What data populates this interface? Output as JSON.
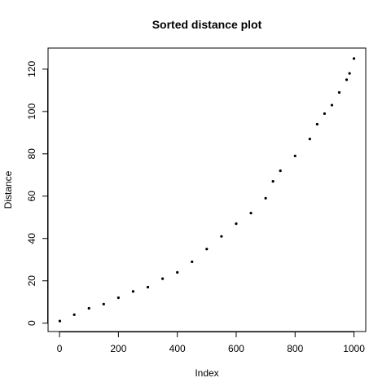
{
  "chart_data": {
    "type": "scatter",
    "title": "Sorted distance plot",
    "xlabel": "Index",
    "ylabel": "Distance",
    "xlim": [
      1,
      1000
    ],
    "ylim": [
      1,
      125
    ],
    "xticks": [
      0,
      200,
      400,
      600,
      800,
      1000
    ],
    "yticks": [
      0,
      20,
      40,
      60,
      80,
      100,
      120
    ],
    "grid": false,
    "marker_color": "#000000",
    "series": [
      {
        "x": [
          1,
          50,
          100,
          150,
          200,
          250,
          300,
          350,
          400,
          450,
          500,
          550,
          600,
          650,
          700,
          725,
          750,
          800,
          850,
          875,
          900,
          925,
          950,
          975,
          985,
          1000
        ],
        "y": [
          1,
          4,
          7,
          9,
          12,
          15,
          17,
          21,
          24,
          29,
          35,
          41,
          47,
          52,
          59,
          67,
          72,
          79,
          87,
          94,
          99,
          103,
          109,
          115,
          118,
          125
        ]
      }
    ]
  }
}
